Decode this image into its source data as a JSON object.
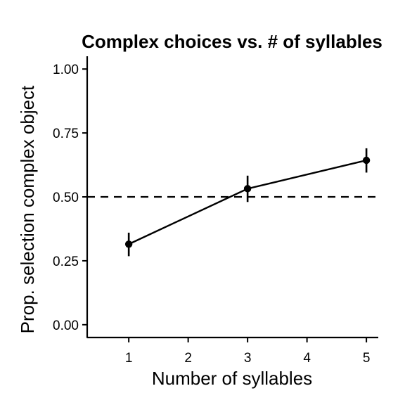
{
  "chart_data": {
    "type": "line",
    "title": "Complex choices vs. # of syllables",
    "xlabel": "Number of syllables",
    "ylabel": "Prop. selection complex object",
    "x_ticks": [
      "1",
      "2",
      "3",
      "4",
      "5"
    ],
    "y_ticks": [
      "0.00",
      "0.25",
      "0.50",
      "0.75",
      "1.00"
    ],
    "xlim": [
      0.3,
      5.2
    ],
    "ylim": [
      -0.05,
      1.05
    ],
    "reference_line": {
      "y": 0.5,
      "style": "dashed"
    },
    "series": [
      {
        "x": [
          1,
          3,
          5
        ],
        "y": [
          0.315,
          0.532,
          0.643
        ],
        "err_low": [
          0.268,
          0.48,
          0.595
        ],
        "err_high": [
          0.36,
          0.583,
          0.69
        ]
      }
    ],
    "grid": false,
    "legend": "none"
  },
  "colors": {
    "line": "#000000",
    "point": "#000000",
    "reference": "#000000",
    "background": "#ffffff"
  }
}
